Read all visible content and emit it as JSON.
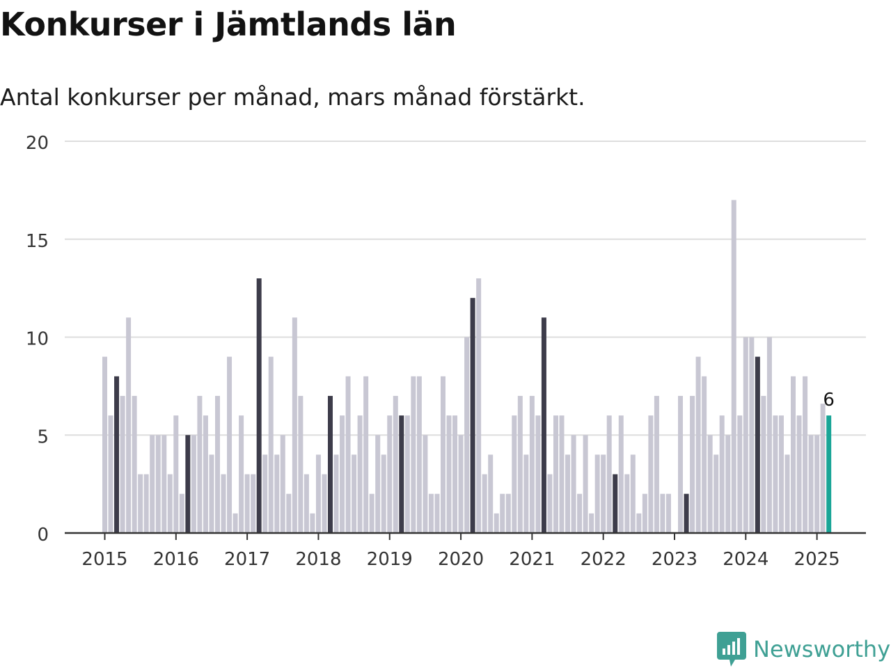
{
  "title": "Konkurser i Jämtlands län",
  "subtitle": "Antal konkurser per månad, mars månad förstärkt.",
  "brand": {
    "name": "Newsworthy",
    "icon": "newsworthy-logo-icon",
    "color": "#3fa094"
  },
  "colors": {
    "bar": "#c8c7d3",
    "highlight": "#3d3c4a",
    "latest": "#19a597",
    "grid": "#dddddd",
    "axis": "#333333"
  },
  "chart_data": {
    "type": "bar",
    "title": "Konkurser i Jämtlands län",
    "subtitle": "Antal konkurser per månad, mars månad förstärkt.",
    "xlabel": "",
    "ylabel": "",
    "ylim": [
      0,
      20
    ],
    "yticks": [
      0,
      5,
      10,
      15,
      20
    ],
    "xticks": [
      "2015",
      "2016",
      "2017",
      "2018",
      "2019",
      "2020",
      "2021",
      "2022",
      "2023",
      "2024",
      "2025"
    ],
    "grid": true,
    "start": "2015-01",
    "highlight_month": "mars",
    "last_label": "6",
    "values": [
      9,
      6,
      8,
      7,
      11,
      7,
      3,
      3,
      5,
      5,
      5,
      3,
      6,
      2,
      5,
      5,
      7,
      6,
      4,
      7,
      3,
      9,
      1,
      6,
      3,
      3,
      13,
      4,
      9,
      4,
      5,
      2,
      11,
      7,
      3,
      1,
      4,
      3,
      7,
      4,
      6,
      8,
      4,
      6,
      8,
      2,
      5,
      4,
      6,
      7,
      6,
      6,
      8,
      8,
      5,
      2,
      2,
      8,
      6,
      6,
      5,
      10,
      12,
      13,
      3,
      4,
      1,
      2,
      2,
      6,
      7,
      4,
      7,
      6,
      11,
      3,
      6,
      6,
      4,
      5,
      2,
      5,
      1,
      4,
      4,
      6,
      3,
      6,
      3,
      4,
      1,
      2,
      6,
      7,
      2,
      2,
      0,
      7,
      2,
      7,
      9,
      8,
      5,
      4,
      6,
      5,
      17,
      6,
      10,
      10,
      9,
      7,
      10,
      6,
      6,
      4,
      8,
      6,
      8,
      5,
      5,
      6.6,
      6
    ]
  }
}
